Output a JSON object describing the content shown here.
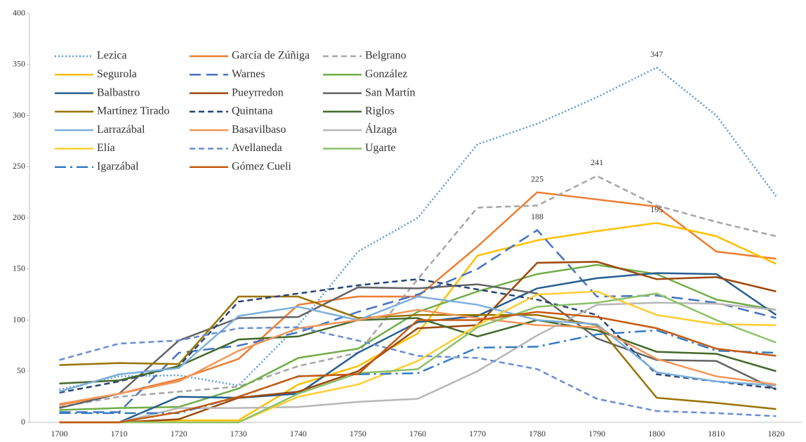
{
  "chart_data": {
    "type": "line",
    "legend": "upper left",
    "categories": [
      "1700",
      "1710",
      "1720",
      "1730",
      "1740",
      "1750",
      "1760",
      "1770",
      "1780",
      "1790",
      "1800",
      "1810",
      "1820"
    ],
    "ylim": [
      0,
      400
    ],
    "yticks": [
      0,
      50,
      100,
      150,
      200,
      250,
      300,
      350,
      400
    ],
    "series": [
      {
        "name": "Lezica",
        "color": "#5b9bd5",
        "dash": "dotted",
        "values": [
          32,
          45,
          46,
          36,
          95,
          167,
          200,
          272,
          292,
          318,
          347,
          300,
          221
        ],
        "value_labels": [
          null,
          null,
          null,
          null,
          null,
          null,
          null,
          null,
          null,
          null,
          "347",
          null,
          null
        ]
      },
      {
        "name": "García de Zúñiga",
        "color": "#ed7d31",
        "dash": "solid",
        "values": [
          17,
          28,
          42,
          62,
          115,
          123,
          123,
          172,
          225,
          218,
          211,
          167,
          160
        ],
        "value_labels": [
          null,
          null,
          null,
          null,
          null,
          null,
          null,
          null,
          "225",
          null,
          null,
          null,
          null
        ]
      },
      {
        "name": "Belgrano",
        "color": "#a5a5a5",
        "dash": "dashed",
        "values": [
          15,
          25,
          30,
          35,
          55,
          68,
          140,
          210,
          212,
          241,
          212,
          196,
          182
        ],
        "value_labels": [
          null,
          null,
          null,
          null,
          null,
          null,
          null,
          null,
          null,
          "241",
          null,
          null,
          null
        ]
      },
      {
        "name": "Segurola",
        "color": "#ffc000",
        "dash": "solid",
        "values": [
          0,
          0,
          2,
          2,
          37,
          55,
          87,
          163,
          178,
          187,
          195,
          182,
          155
        ],
        "value_labels": [
          null,
          null,
          null,
          null,
          null,
          null,
          null,
          null,
          null,
          null,
          "195",
          null,
          null
        ]
      },
      {
        "name": "Warnes",
        "color": "#4472c4",
        "dash": "long-dash",
        "values": [
          10,
          10,
          68,
          75,
          88,
          108,
          125,
          150,
          188,
          123,
          124,
          117,
          102
        ],
        "value_labels": [
          null,
          null,
          null,
          null,
          null,
          null,
          null,
          null,
          "188",
          null,
          null,
          null,
          null
        ]
      },
      {
        "name": "González",
        "color": "#70ad47",
        "dash": "solid",
        "values": [
          12,
          14,
          15,
          33,
          63,
          72,
          108,
          128,
          145,
          154,
          145,
          120,
          110
        ]
      },
      {
        "name": "Balbastro",
        "color": "#255e91",
        "dash": "solid",
        "values": [
          0,
          0,
          25,
          24,
          28,
          68,
          98,
          104,
          131,
          141,
          146,
          145,
          105
        ]
      },
      {
        "name": "Pueyrredon",
        "color": "#9e480e",
        "dash": "solid",
        "values": [
          0,
          0,
          3,
          24,
          30,
          50,
          92,
          95,
          156,
          157,
          140,
          142,
          128
        ]
      },
      {
        "name": "San Martín",
        "color": "#636363",
        "dash": "solid",
        "values": [
          14,
          28,
          80,
          102,
          103,
          132,
          131,
          135,
          126,
          82,
          61,
          60,
          32
        ]
      },
      {
        "name": "Martínez Tirado",
        "color": "#997300",
        "dash": "solid",
        "values": [
          56,
          58,
          57,
          123,
          123,
          102,
          105,
          105,
          105,
          95,
          24,
          19,
          13
        ]
      },
      {
        "name": "Quintana",
        "color": "#264478",
        "dash": "dashed",
        "values": [
          29,
          40,
          55,
          118,
          126,
          134,
          140,
          130,
          120,
          105,
          47,
          40,
          33
        ]
      },
      {
        "name": "Riglos",
        "color": "#43682b",
        "dash": "solid",
        "values": [
          38,
          41,
          55,
          81,
          84,
          100,
          102,
          84,
          100,
          90,
          69,
          67,
          50
        ]
      },
      {
        "name": "Larrazábal",
        "color": "#7cafdd",
        "dash": "solid",
        "values": [
          30,
          47,
          53,
          104,
          113,
          100,
          123,
          115,
          100,
          96,
          49,
          40,
          36
        ]
      },
      {
        "name": "Basavilbaso",
        "color": "#f1975a",
        "dash": "solid",
        "values": [
          18,
          28,
          40,
          70,
          92,
          100,
          110,
          102,
          95,
          93,
          62,
          45,
          37
        ]
      },
      {
        "name": "Álzaga",
        "color": "#b7b7b7",
        "dash": "solid",
        "values": [
          0,
          0,
          14,
          14,
          15,
          20,
          23,
          50,
          85,
          115,
          117,
          116,
          110
        ]
      },
      {
        "name": "Elía",
        "color": "#ffcd33",
        "dash": "solid",
        "values": [
          0,
          0,
          0,
          0,
          25,
          37,
          60,
          95,
          125,
          128,
          105,
          96,
          95
        ]
      },
      {
        "name": "Avellaneda",
        "color": "#698ed0",
        "dash": "dashed",
        "values": [
          61,
          77,
          80,
          92,
          93,
          80,
          65,
          63,
          52,
          23,
          11,
          9,
          6
        ]
      },
      {
        "name": "Ugarte",
        "color": "#8cc168",
        "dash": "solid",
        "values": [
          0,
          0,
          0,
          0,
          28,
          48,
          52,
          93,
          113,
          117,
          126,
          100,
          78
        ]
      },
      {
        "name": "Igarzábal",
        "color": "#327dc2",
        "dash": "dash-dot",
        "values": [
          9,
          9,
          9,
          25,
          45,
          47,
          48,
          73,
          74,
          86,
          90,
          70,
          68
        ]
      },
      {
        "name": "Gómez Cueli",
        "color": "#c55a11",
        "dash": "solid",
        "values": [
          0,
          0,
          10,
          25,
          45,
          47,
          100,
          100,
          108,
          103,
          92,
          72,
          65
        ]
      }
    ]
  }
}
